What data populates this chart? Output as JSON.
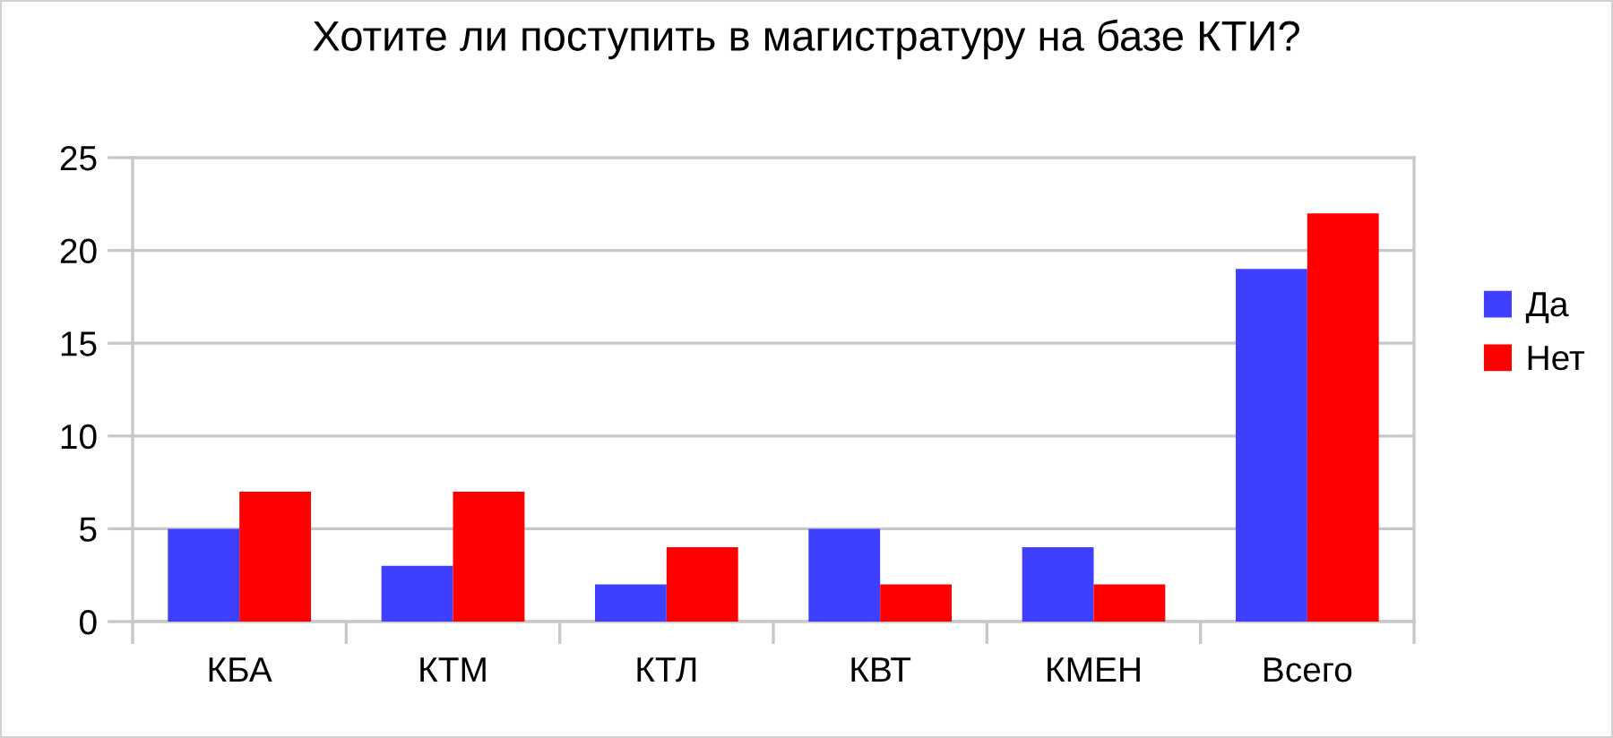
{
  "chart_data": {
    "type": "bar",
    "title": "Хотите ли поступить в магистратуру на базе КТИ?",
    "categories": [
      "КБА",
      "КТМ",
      "КТЛ",
      "КВТ",
      "КМЕН",
      "Всего"
    ],
    "series": [
      {
        "name": "Да",
        "color": "#3f3fff",
        "values": [
          5,
          3,
          2,
          5,
          4,
          19
        ]
      },
      {
        "name": "Нет",
        "color": "#ff0000",
        "values": [
          7,
          7,
          4,
          2,
          2,
          22
        ]
      }
    ],
    "ylim": [
      0,
      25
    ],
    "yticks": [
      0,
      5,
      10,
      15,
      20,
      25
    ],
    "grid": "y",
    "legend": "right"
  }
}
